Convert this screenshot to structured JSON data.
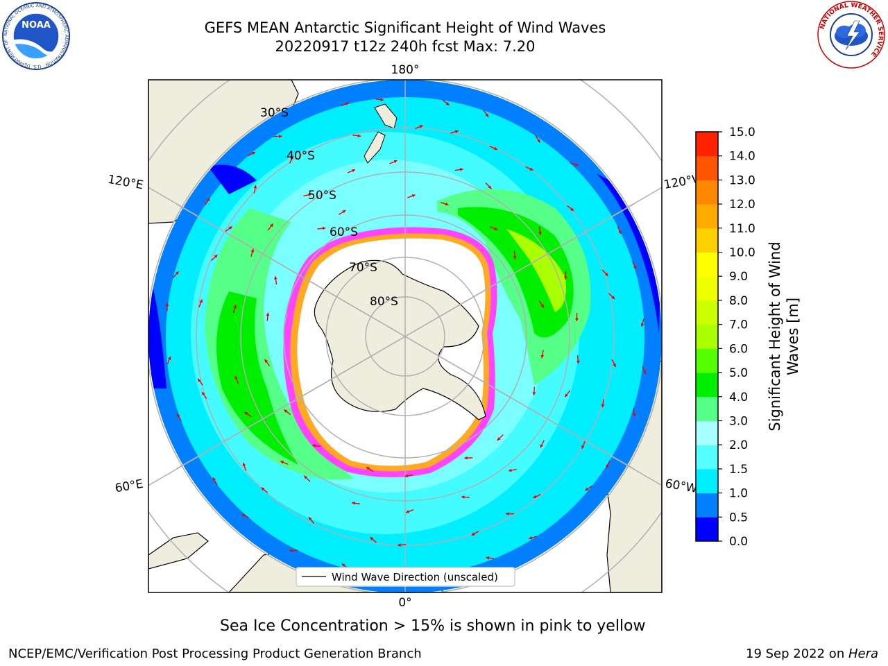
{
  "header": {
    "title_line1": "GEFS MEAN Antarctic Significant Height of Wind Waves",
    "title_line2": "20220917 t12z 240h fcst   Max: 7.20"
  },
  "logos": {
    "left": {
      "text": "NOAA",
      "ring_text": "NATIONAL OCEANIC AND ATMOSPHERIC ADMINISTRATION · U.S. DEPARTMENT OF COMMERCE"
    },
    "right": {
      "ring_text": "NATIONAL WEATHER SERVICE"
    }
  },
  "map": {
    "longitude_labels": {
      "top": "180°",
      "bottom": "0°",
      "upper_left": "120°E",
      "upper_right": "120°W",
      "lower_left": "60°E",
      "lower_right": "60°W"
    },
    "latitude_labels": [
      "30°S",
      "40°S",
      "50°S",
      "60°S",
      "70°S",
      "80°S"
    ],
    "legend_label": "Wind Wave Direction (unscaled)",
    "land_color": "#efedde",
    "ice_edge_colors": [
      "#ff44ff",
      "#ffaa22",
      "#ffd633"
    ]
  },
  "colorbar": {
    "label_line1": "Significant Height of Wind",
    "label_line2": "Waves [m]",
    "ticks": [
      "0.0",
      "0.5",
      "1.0",
      "1.5",
      "2.0",
      "3.0",
      "4.0",
      "5.0",
      "6.0",
      "7.0",
      "8.0",
      "9.0",
      "10.0",
      "11.0",
      "12.0",
      "13.0",
      "14.0",
      "15.0"
    ],
    "colors": [
      "#0000ff",
      "#0080ff",
      "#00eeff",
      "#55ffff",
      "#aaffff",
      "#55ff88",
      "#00ee00",
      "#55ff00",
      "#aaff00",
      "#ccff00",
      "#eeff00",
      "#ffff00",
      "#ffd000",
      "#ffaa00",
      "#ff8800",
      "#ff5500",
      "#ff2200"
    ]
  },
  "notes": {
    "sea_ice": "Sea Ice Concentration > 15% is shown in pink to yellow"
  },
  "footer": {
    "left": "NCEP/EMC/Verification Post Processing Product Generation Branch",
    "right_date": "19 Sep 2022 on ",
    "right_host": "Hera"
  }
}
